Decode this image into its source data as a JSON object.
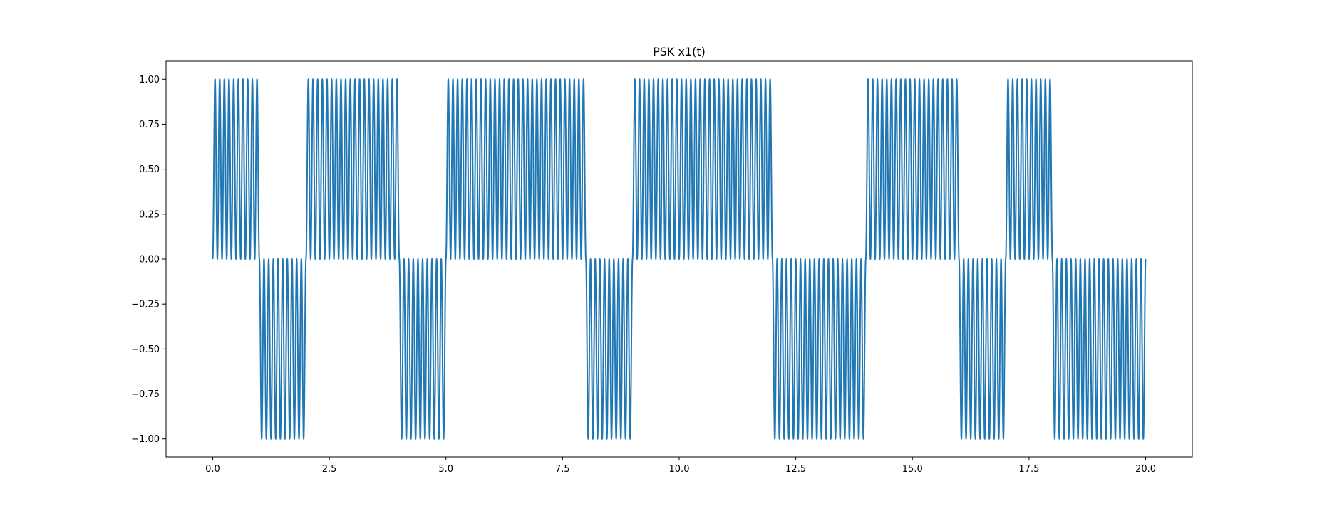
{
  "chart_data": {
    "type": "line",
    "title": "PSK x1(t)",
    "xlabel": "",
    "ylabel": "",
    "xlim": [
      -1.0,
      21.0
    ],
    "ylim": [
      -1.1,
      1.1
    ],
    "x_ticks": [
      0.0,
      2.5,
      5.0,
      7.5,
      10.0,
      12.5,
      15.0,
      17.5,
      20.0
    ],
    "x_tick_labels": [
      "0.0",
      "2.5",
      "5.0",
      "7.5",
      "10.0",
      "12.5",
      "15.0",
      "17.5",
      "20.0"
    ],
    "y_ticks": [
      -1.0,
      -0.75,
      -0.5,
      -0.25,
      0.0,
      0.25,
      0.5,
      0.75,
      1.0
    ],
    "y_tick_labels": [
      "−1.00",
      "−0.75",
      "−0.50",
      "−0.25",
      "0.00",
      "0.25",
      "0.50",
      "0.75",
      "1.00"
    ],
    "grid": false,
    "series": [
      {
        "color": "#1f77b4",
        "formula": "sin^2(2*pi*f*t + phase(bit_k))",
        "t_start": 0.0,
        "t_end": 20.0,
        "carrier_frequency": 5,
        "symbol_duration": 1.0,
        "phase_for_bit_1": 0,
        "phase_for_bit_0": 3.14159,
        "bits": [
          1,
          0,
          1,
          1,
          0,
          1,
          1,
          1,
          0,
          1,
          1,
          1,
          0,
          0,
          1,
          1,
          0,
          1,
          0,
          0
        ]
      }
    ]
  }
}
